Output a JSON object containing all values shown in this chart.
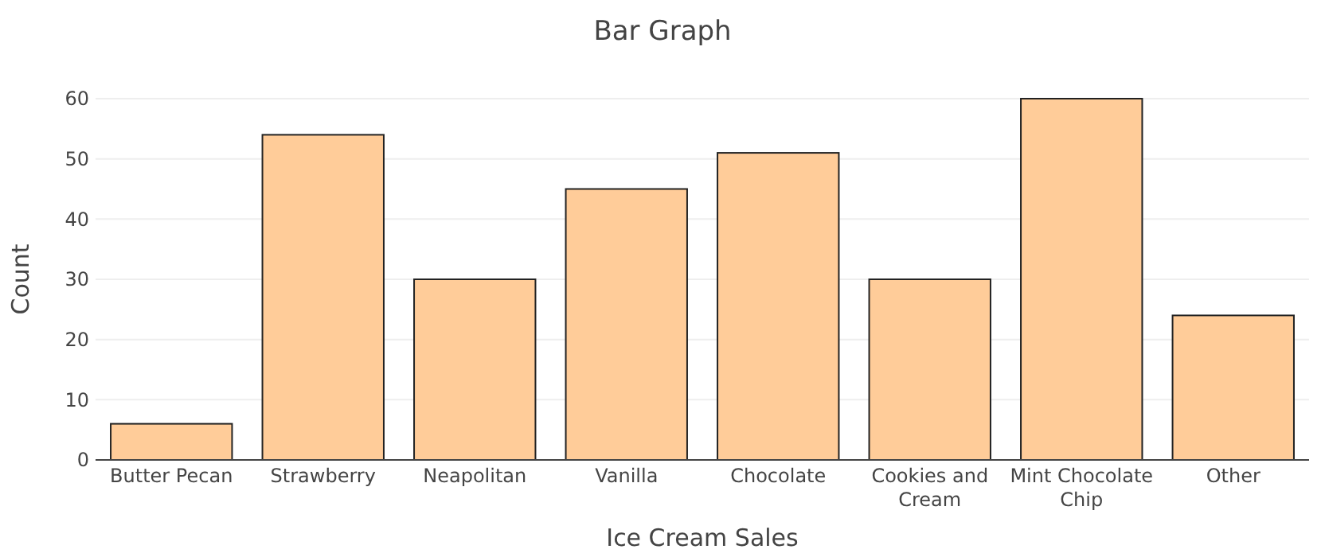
{
  "chart_data": {
    "type": "bar",
    "title": "Bar Graph",
    "xlabel": "Ice Cream Sales",
    "ylabel": "Count",
    "categories": [
      "Butter Pecan",
      "Strawberry",
      "Neapolitan",
      "Vanilla",
      "Chocolate",
      "Cookies and Cream",
      "Mint Chocolate Chip",
      "Other"
    ],
    "values": [
      6,
      54,
      30,
      45,
      51,
      30,
      60,
      24
    ],
    "color": "#ffcc99",
    "ylim": [
      0,
      60
    ],
    "yticks": [
      0,
      10,
      20,
      30,
      40,
      50,
      60
    ],
    "grid": "y"
  }
}
